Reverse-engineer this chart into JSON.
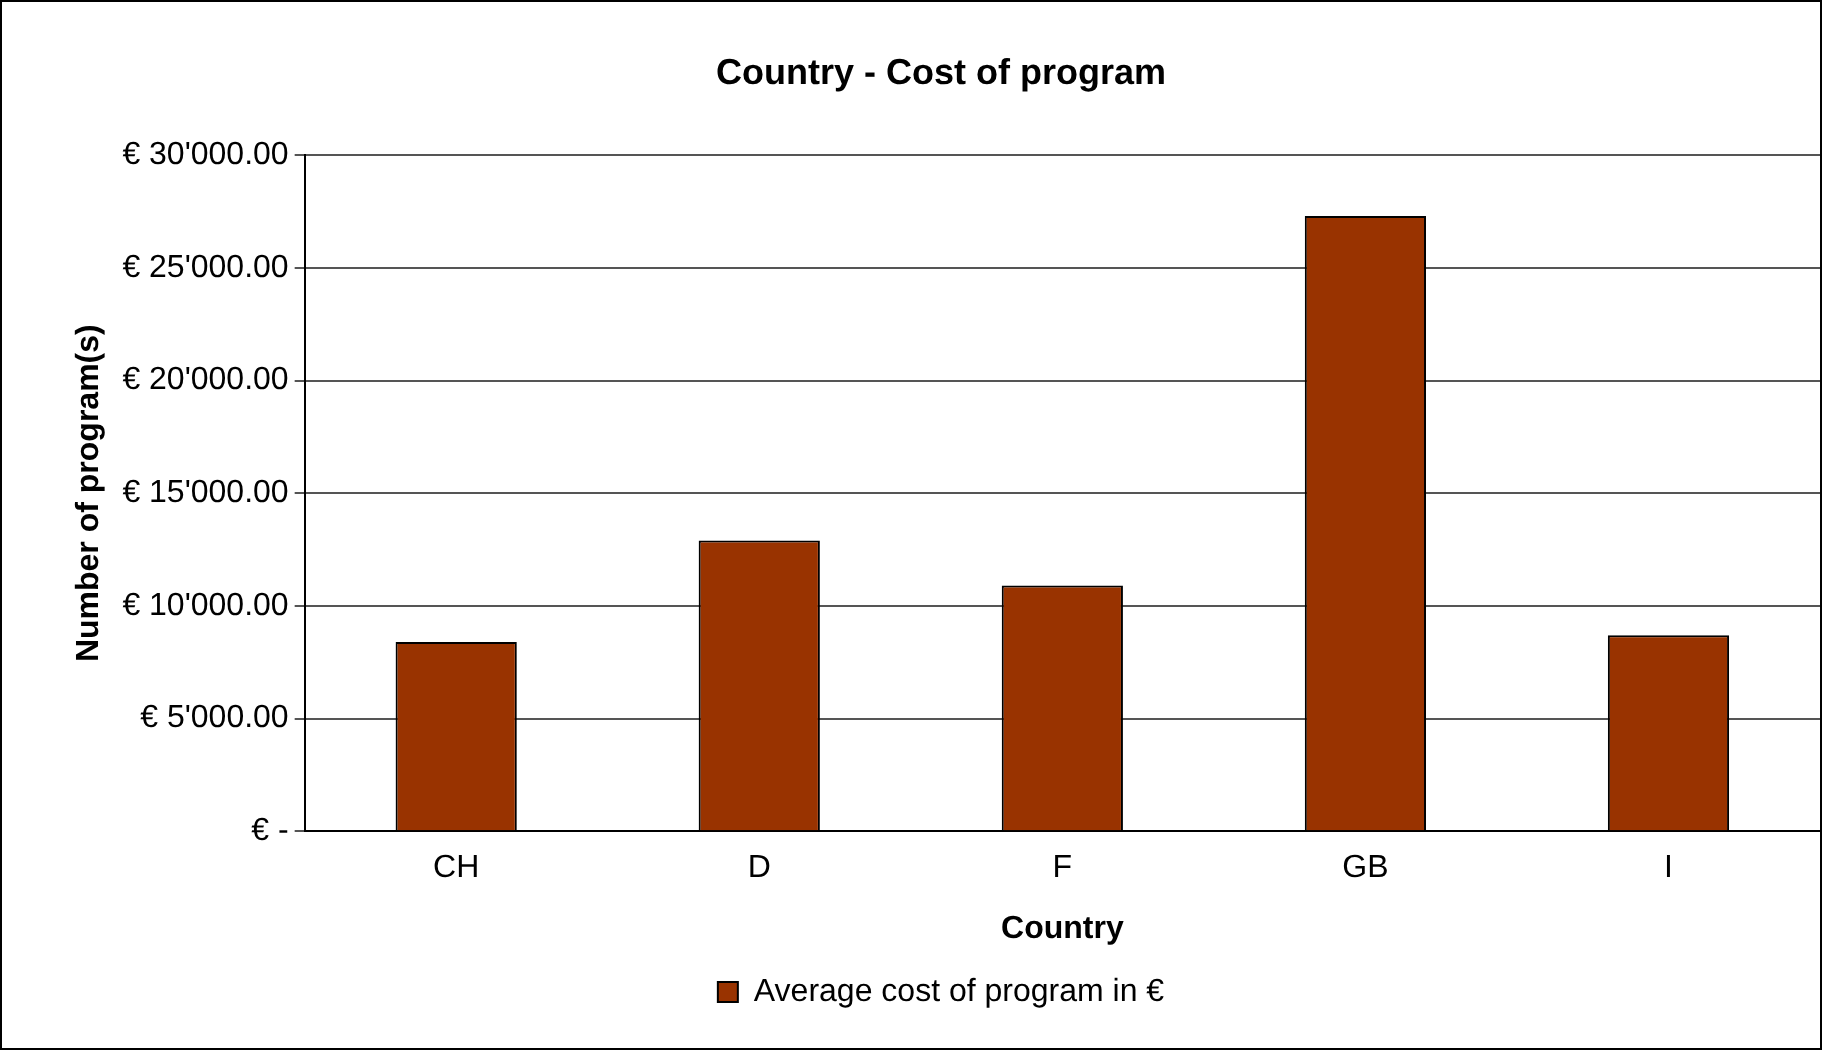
{
  "chart_data": {
    "type": "bar",
    "title": "Country - Cost of program",
    "xlabel": "Country",
    "ylabel": "Number of program(s)",
    "categories": [
      "CH",
      "D",
      "F",
      "GB",
      "I"
    ],
    "series": [
      {
        "name": "Average cost of program in €",
        "color": "#993300",
        "values": [
          8400,
          12900,
          10900,
          27300,
          8700
        ]
      }
    ],
    "ylim": [
      0,
      30000
    ],
    "yticks": [
      {
        "value": 0,
        "label": "€ -"
      },
      {
        "value": 5000,
        "label": "€ 5'000.00"
      },
      {
        "value": 10000,
        "label": "€ 10'000.00"
      },
      {
        "value": 15000,
        "label": "€ 15'000.00"
      },
      {
        "value": 20000,
        "label": "€ 20'000.00"
      },
      {
        "value": 25000,
        "label": "€ 25'000.00"
      },
      {
        "value": 30000,
        "label": "€ 30'000.00"
      }
    ],
    "grid": "y",
    "legend": "bottom"
  }
}
